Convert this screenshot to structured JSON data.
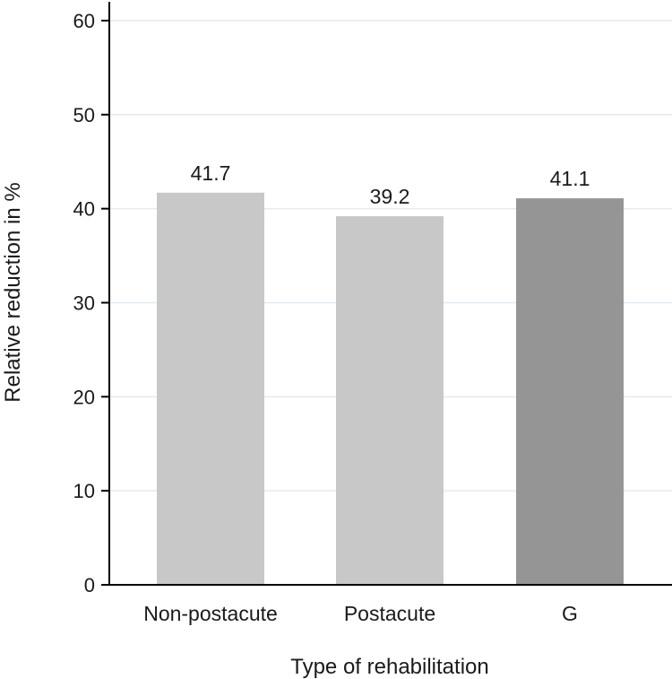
{
  "chart_data": {
    "type": "bar",
    "title": "",
    "xlabel": "Type of rehabilitation",
    "ylabel": "Relative reduction in %",
    "categories": [
      "Non-postacute",
      "Postacute",
      "G"
    ],
    "values": [
      41.7,
      39.2,
      41.1
    ],
    "value_labels": [
      "41.7",
      "39.2",
      "41.1"
    ],
    "bar_colors": [
      "#c8c8c8",
      "#c8c8c8",
      "#959595"
    ],
    "ylim": [
      0,
      62
    ],
    "yticks": [
      0,
      10,
      20,
      30,
      40,
      50,
      60
    ],
    "grid": true,
    "legend": "none"
  }
}
